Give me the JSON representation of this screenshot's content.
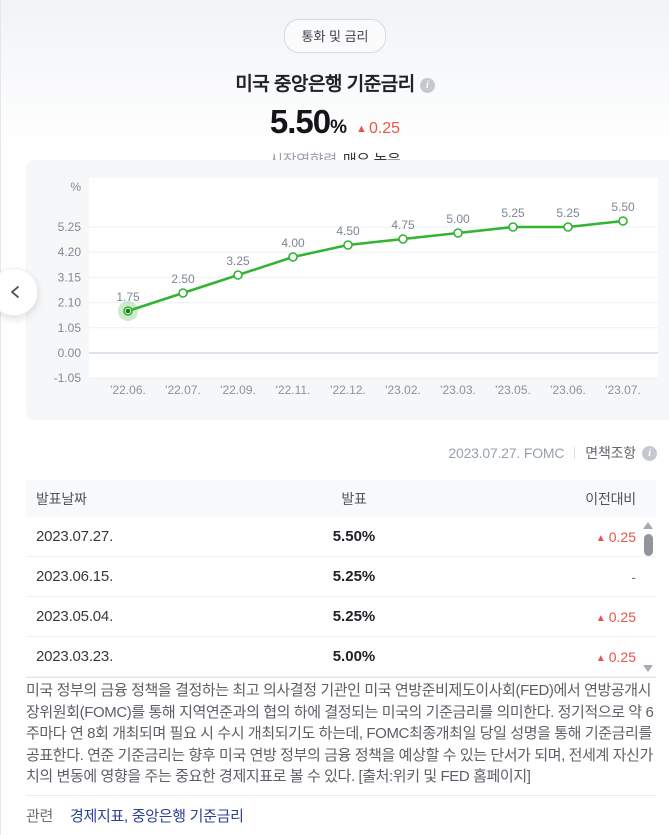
{
  "page": {
    "category_badge": "통화 및 금리",
    "title": "미국 중앙은행 기준금리",
    "current_value": "5.50",
    "current_unit": "%",
    "change_arrow": "▲",
    "change_value": "0.25",
    "impact_label": "시장영향력",
    "impact_value": "매우 높음"
  },
  "chart_data": {
    "type": "line",
    "unit_label": "%",
    "x": [
      "'22.06.",
      "'22.07.",
      "'22.09.",
      "'22.11.",
      "'22.12.",
      "'23.02.",
      "'23.03.",
      "'23.05.",
      "'23.06.",
      "'23.07."
    ],
    "values": [
      1.75,
      2.5,
      3.25,
      4.0,
      4.5,
      4.75,
      5.0,
      5.25,
      5.25,
      5.5
    ],
    "point_labels": [
      "1.75",
      "2.50",
      "3.25",
      "4.00",
      "4.50",
      "4.75",
      "5.00",
      "5.25",
      "5.25",
      "5.50"
    ],
    "y_ticks": [
      5.25,
      4.2,
      3.15,
      2.1,
      1.05,
      0,
      -1.05
    ],
    "ylim": [
      -1.05,
      7.3
    ],
    "grid": true,
    "selected_index": 0
  },
  "colors": {
    "line_green": "#32b332",
    "selected_dot": "#1d7f1d",
    "rise_red": "#e85549",
    "link_navy": "#2c4198",
    "grid": "#edf0f4",
    "zero_line": "#b9c7d8",
    "chart_bg": "#f6f7f9",
    "tick_label": "#7f8a97",
    "x_label": "#8b93a0",
    "point_label": "#7c8795"
  },
  "meta": {
    "date_label": "2023.07.27. FOMC",
    "disclaimer_label": "면책조항"
  },
  "table": {
    "columns": [
      "발표날짜",
      "발표",
      "이전대비"
    ],
    "rows": [
      {
        "date": "2023.07.27.",
        "value": "5.50%",
        "change_arrow": "▲",
        "change_value": "0.25",
        "change_type": "up"
      },
      {
        "date": "2023.06.15.",
        "value": "5.25%",
        "change_arrow": "",
        "change_value": "-",
        "change_type": "none"
      },
      {
        "date": "2023.05.04.",
        "value": "5.25%",
        "change_arrow": "▲",
        "change_value": "0.25",
        "change_type": "up"
      },
      {
        "date": "2023.03.23.",
        "value": "5.00%",
        "change_arrow": "▲",
        "change_value": "0.25",
        "change_type": "up"
      }
    ]
  },
  "description": "미국 정부의 금융 정책을 결정하는 최고 의사결정 기관인 미국 연방준비제도이사회(FED)에서 연방공개시장위원회(FOMC)를 통해 지역연준과의 협의 하에 결정되는 미국의 기준금리를 의미한다. 정기적으로 약 6주마다 연 8회 개최되며 필요 시 수시 개최되기도 하는데, FOMC최종개최일 당일 성명을 통해 기준금리를 공표한다. 연준 기준금리는 향후 미국 연방 정부의 금융 정책을 예상할 수 있는 단서가 되며, 전세계 자신가치의 변동에 영향을 주는 중요한 경제지표로 볼 수 있다. [출처:위키 및 FED 홈페이지]",
  "related": {
    "label": "관련",
    "links": [
      "경제지표",
      "중앙은행 기준금리"
    ],
    "separator": ", "
  }
}
